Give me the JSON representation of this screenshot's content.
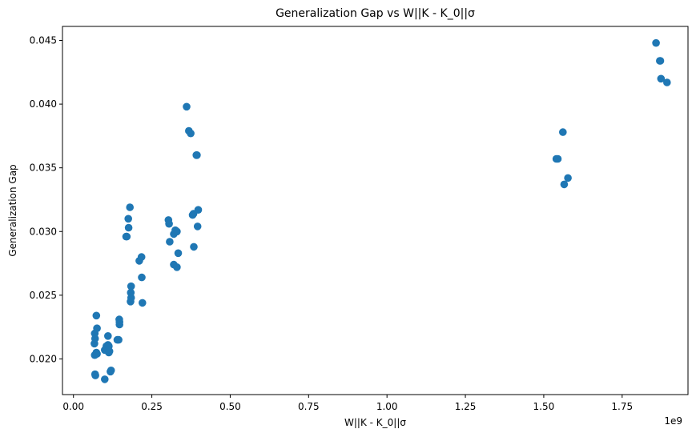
{
  "chart_data": {
    "type": "scatter",
    "title": "Generalization Gap vs W||K - K_0||σ",
    "xlabel": "W||K - K_0||σ",
    "ylabel": "Generalization Gap",
    "x_multiplier_label": "1e9",
    "xlim": [
      -0.035,
      1.96
    ],
    "ylim": [
      0.0172,
      0.0461
    ],
    "x_ticks": [
      0.0,
      0.25,
      0.5,
      0.75,
      1.0,
      1.25,
      1.5,
      1.75
    ],
    "x_tick_labels": [
      "0.00",
      "0.25",
      "0.50",
      "0.75",
      "1.00",
      "1.25",
      "1.50",
      "1.75"
    ],
    "y_ticks": [
      0.02,
      0.025,
      0.03,
      0.035,
      0.04,
      0.045
    ],
    "y_tick_labels": [
      "0.020",
      "0.025",
      "0.030",
      "0.035",
      "0.040",
      "0.045"
    ],
    "grid": false,
    "marker_color": "#1f77b4",
    "points": [
      [
        0.069,
        0.0188
      ],
      [
        0.07,
        0.0187
      ],
      [
        0.068,
        0.0203
      ],
      [
        0.073,
        0.0205
      ],
      [
        0.075,
        0.0204
      ],
      [
        0.067,
        0.0212
      ],
      [
        0.069,
        0.0216
      ],
      [
        0.068,
        0.022
      ],
      [
        0.075,
        0.0224
      ],
      [
        0.073,
        0.0234
      ],
      [
        0.1,
        0.0184
      ],
      [
        0.118,
        0.019
      ],
      [
        0.12,
        0.0191
      ],
      [
        0.1,
        0.0207
      ],
      [
        0.105,
        0.021
      ],
      [
        0.115,
        0.0206
      ],
      [
        0.113,
        0.0205
      ],
      [
        0.11,
        0.0211
      ],
      [
        0.113,
        0.021
      ],
      [
        0.11,
        0.0218
      ],
      [
        0.14,
        0.0215
      ],
      [
        0.144,
        0.0215
      ],
      [
        0.147,
        0.0227
      ],
      [
        0.147,
        0.0229
      ],
      [
        0.146,
        0.0231
      ],
      [
        0.168,
        0.0296
      ],
      [
        0.17,
        0.0296
      ],
      [
        0.175,
        0.031
      ],
      [
        0.176,
        0.0303
      ],
      [
        0.18,
        0.0319
      ],
      [
        0.182,
        0.0245
      ],
      [
        0.184,
        0.0248
      ],
      [
        0.183,
        0.0252
      ],
      [
        0.184,
        0.0257
      ],
      [
        0.21,
        0.0277
      ],
      [
        0.217,
        0.028
      ],
      [
        0.22,
        0.0244
      ],
      [
        0.218,
        0.0264
      ],
      [
        0.303,
        0.0309
      ],
      [
        0.305,
        0.0306
      ],
      [
        0.307,
        0.0292
      ],
      [
        0.32,
        0.0298
      ],
      [
        0.325,
        0.0301
      ],
      [
        0.33,
        0.03
      ],
      [
        0.32,
        0.0274
      ],
      [
        0.33,
        0.0272
      ],
      [
        0.334,
        0.0283
      ],
      [
        0.361,
        0.0398
      ],
      [
        0.368,
        0.0379
      ],
      [
        0.374,
        0.0377
      ],
      [
        0.38,
        0.0313
      ],
      [
        0.383,
        0.0314
      ],
      [
        0.384,
        0.0288
      ],
      [
        0.392,
        0.036
      ],
      [
        0.394,
        0.036
      ],
      [
        0.396,
        0.0304
      ],
      [
        0.398,
        0.0317
      ],
      [
        1.54,
        0.0357
      ],
      [
        1.545,
        0.0357
      ],
      [
        1.561,
        0.0378
      ],
      [
        1.565,
        0.0337
      ],
      [
        1.577,
        0.0342
      ],
      [
        1.858,
        0.0448
      ],
      [
        1.87,
        0.0434
      ],
      [
        1.872,
        0.0434
      ],
      [
        1.874,
        0.042
      ],
      [
        1.893,
        0.0417
      ]
    ]
  }
}
